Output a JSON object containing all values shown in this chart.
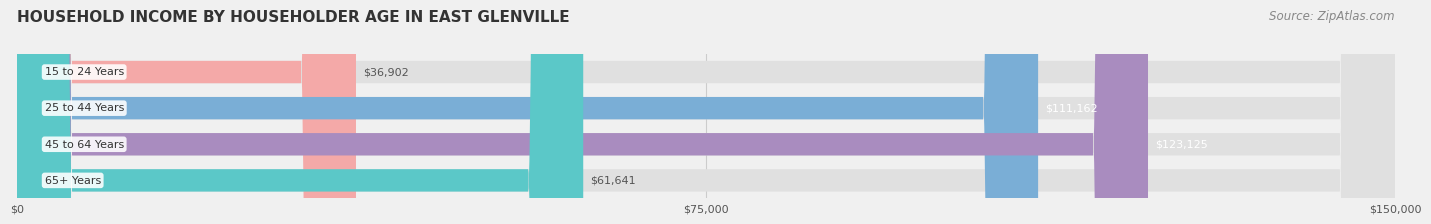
{
  "title": "HOUSEHOLD INCOME BY HOUSEHOLDER AGE IN EAST GLENVILLE",
  "source": "Source: ZipAtlas.com",
  "categories": [
    "15 to 24 Years",
    "25 to 44 Years",
    "45 to 64 Years",
    "65+ Years"
  ],
  "values": [
    36902,
    111162,
    123125,
    61641
  ],
  "value_labels": [
    "$36,902",
    "$111,162",
    "$123,125",
    "$61,641"
  ],
  "bar_colors": [
    "#f4a9a8",
    "#7aaed6",
    "#a98cbf",
    "#5bc8c8"
  ],
  "label_colors": [
    "#555555",
    "#ffffff",
    "#ffffff",
    "#555555"
  ],
  "xmax": 150000,
  "xtick_labels": [
    "$0",
    "$75,000",
    "$150,000"
  ],
  "bg_color": "#f0f0f0",
  "bar_bg_color": "#e0e0e0",
  "title_fontsize": 11,
  "source_fontsize": 8.5,
  "label_fontsize": 8,
  "tick_fontsize": 8
}
